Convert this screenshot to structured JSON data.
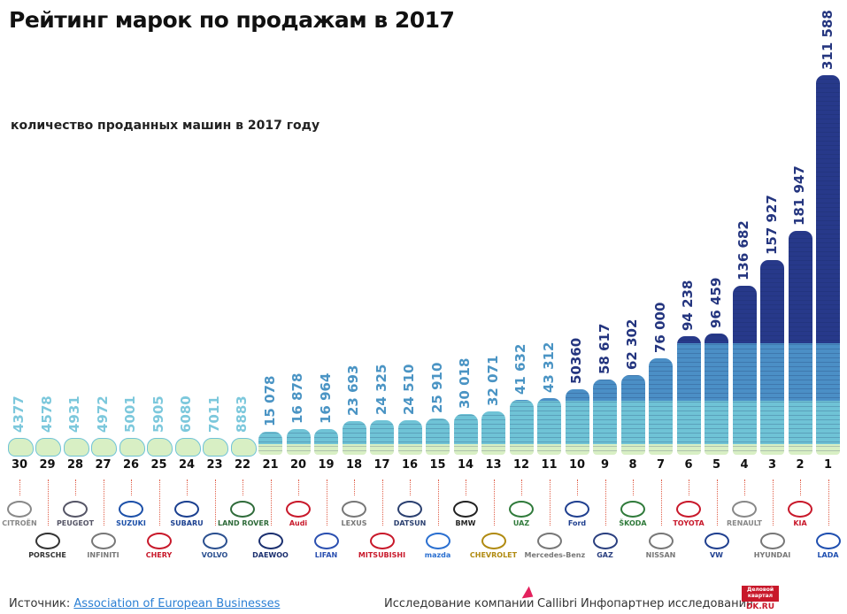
{
  "chart_data": {
    "type": "bar",
    "title": "Рейтинг марок по продажам в 2017",
    "subtitle": "количество проданных машин в 2017 году",
    "ranks": [
      30,
      29,
      28,
      27,
      26,
      25,
      24,
      23,
      22,
      21,
      20,
      19,
      18,
      17,
      16,
      15,
      14,
      13,
      12,
      11,
      10,
      9,
      8,
      7,
      6,
      5,
      4,
      3,
      2,
      1
    ],
    "categories": [
      "Citroën",
      "Porsche",
      "Peugeot",
      "Infiniti",
      "Suzuki",
      "Chery",
      "Subaru",
      "Volvo",
      "Land Rover",
      "Daewoo",
      "Audi",
      "Lifan",
      "Lexus",
      "Mitsubishi",
      "Datsun",
      "Mazda",
      "BMW",
      "Chevrolet",
      "UAZ",
      "Mercedes-Benz",
      "Ford",
      "GAZ",
      "Škoda",
      "Nissan",
      "Toyota",
      "Volkswagen",
      "Renault",
      "Hyundai",
      "Kia",
      "Lada"
    ],
    "values": [
      4377,
      4578,
      4931,
      4972,
      5001,
      5905,
      6080,
      7011,
      8883,
      15078,
      16878,
      16964,
      23693,
      24325,
      24510,
      25910,
      30018,
      32071,
      41632,
      43312,
      50360,
      58617,
      62302,
      76000,
      94238,
      96459,
      136682,
      157927,
      181947,
      311588
    ],
    "value_labels": [
      "4377",
      "4578",
      "4931",
      "4972",
      "5001",
      "5905",
      "6080",
      "7011",
      "8883",
      "15 078",
      "16 878",
      "16 964",
      "23 693",
      "24 325",
      "24 510",
      "25 910",
      "30 018",
      "32 071",
      "41 632",
      "43 312",
      "50360",
      "58 617",
      "62 302",
      "76 000",
      "94 238",
      "96 459",
      "136 682",
      "157 927",
      "181 947",
      "311 588"
    ],
    "logo_text": [
      "CITROËN",
      "PORSCHE",
      "PEUGEOT",
      "INFINITI",
      "SUZUKI",
      "CHERY",
      "SUBARU",
      "VOLVO",
      "LAND ROVER",
      "DAEWOO",
      "Audi",
      "LIFAN",
      "LEXUS",
      "MITSUBISHI",
      "DATSUN",
      "mazda",
      "BMW",
      "CHEVROLET",
      "UAZ",
      "Mercedes-Benz",
      "Ford",
      "GAZ",
      "ŠKODA",
      "NISSAN",
      "TOYOTA",
      "VW",
      "RENAULT",
      "HYUNDAI",
      "KIA",
      "LADA"
    ],
    "logo_colors": [
      "#888",
      "#333",
      "#556",
      "#777",
      "#1b4fa8",
      "#c8182a",
      "#1a3f8f",
      "#2a4f8f",
      "#2f6b3a",
      "#1a2f6f",
      "#c8182a",
      "#2a4fb0",
      "#777",
      "#c8182a",
      "#2a3f6f",
      "#2a6fd0",
      "#222",
      "#b08a10",
      "#2f7a3a",
      "#777",
      "#1f3f8f",
      "#2a3f7f",
      "#2f7a3a",
      "#777",
      "#c8182a",
      "#1f3f8f",
      "#888",
      "#777",
      "#c8182a",
      "#1f4fb0"
    ],
    "colors": {
      "light": "#d8efc4",
      "cyan": "#6fc3d6",
      "mid": "#4b8fc6",
      "dark": "#27398a",
      "label_light": "#7cc8dc",
      "label_mid": "#4a94c4",
      "label_dark": "#24357f"
    },
    "grid": false
  },
  "footer": {
    "source_label": "Источник:",
    "source_link": "Association of European Businesses",
    "research_label": "Исследование компании",
    "callibri": "Callibri",
    "partner_label": "Инфопартнер исследования",
    "dk_logo": "Деловой квартал",
    "dk_url": "DK.RU"
  }
}
